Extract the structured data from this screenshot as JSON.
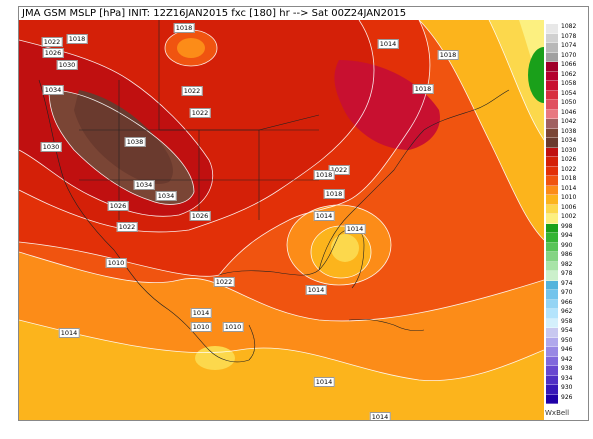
{
  "header": {
    "title": "JMA GSM MSLP [hPa]  INIT: 12Z16JAN2015 fxc [180] hr --> Sat 00Z24JAN2015"
  },
  "legend": {
    "levels": [
      "1082",
      "1078",
      "1074",
      "1070",
      "1066",
      "1062",
      "1058",
      "1054",
      "1050",
      "1046",
      "1042",
      "1038",
      "1034",
      "1030",
      "1026",
      "1022",
      "1018",
      "1014",
      "1010",
      "1006",
      "1002",
      "998",
      "994",
      "990",
      "986",
      "982",
      "978",
      "974",
      "970",
      "966",
      "962",
      "958",
      "954",
      "950",
      "946",
      "942",
      "938",
      "934",
      "930",
      "926"
    ],
    "colors": [
      "#e8e8e8",
      "#d0d0d0",
      "#b8b8b8",
      "#a0a0a0",
      "#a0002a",
      "#b4002e",
      "#c81030",
      "#d83040",
      "#e05060",
      "#e87880",
      "#a06060",
      "#7a4535",
      "#6a3a2e",
      "#c01010",
      "#d42008",
      "#e23008",
      "#f05410",
      "#fc8c18",
      "#fcb41c",
      "#fcd84c",
      "#fcf080",
      "#1aa01a",
      "#34b434",
      "#58c458",
      "#84d484",
      "#a8e4a8",
      "#ccf0cc",
      "#54b4dc",
      "#74c4ec",
      "#94d4f4",
      "#b4e4fc",
      "#d4f0fc",
      "#c8c8f0",
      "#b0a8ec",
      "#9888e4",
      "#8068dc",
      "#6848d0",
      "#5030c4",
      "#3818b8",
      "#2000a8"
    ],
    "brand": "WxBell"
  },
  "map": {
    "isobar_labels": [
      "1022",
      "1018",
      "1026",
      "1030",
      "1034",
      "1018",
      "1014",
      "1018",
      "1018",
      "1022",
      "1038",
      "1034",
      "1034",
      "1022",
      "1026",
      "1022",
      "1030",
      "1026",
      "1022",
      "1018",
      "1014",
      "1014",
      "1010",
      "1014",
      "1014",
      "1010",
      "1010",
      "1014",
      "1014",
      "1018",
      "1022",
      "1014"
    ]
  }
}
